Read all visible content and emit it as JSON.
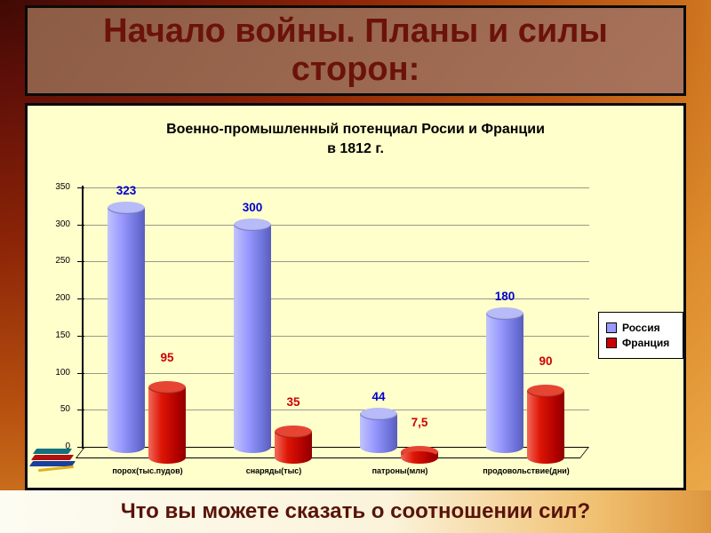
{
  "slide": {
    "title": "Начало войны. Планы и силы сторон:",
    "question": "Что вы можете сказать о соотношении сил?"
  },
  "chart": {
    "title_line1": "Военно-промышленный потенциал Росии и Франции",
    "title_line2": "в 1812 г."
  },
  "colors": {
    "chart_background": "#ffffcc",
    "russia_bar": "#9999ff",
    "france_bar": "#cc0000",
    "value_label_russia": "#0000cc",
    "value_label_france": "#cc0000"
  },
  "chart_data": {
    "type": "bar",
    "style": "3d-cylinder",
    "title": "Военно-промышленный потенциал Росии и Франции в 1812 г.",
    "categories": [
      "порох(тыс.пудов)",
      "снаряды(тыс)",
      "патроны(млн)",
      "продовольствие(дни)"
    ],
    "series": [
      {
        "key": "russia",
        "name": "Россия",
        "color": "#9999ff",
        "values": [
          323,
          300,
          44,
          180
        ],
        "labels": [
          "323",
          "300",
          "44",
          "180"
        ],
        "label_color": "#0000cc"
      },
      {
        "key": "france",
        "name": "Франция",
        "color": "#cc0000",
        "values": [
          95,
          35,
          7.5,
          90
        ],
        "labels": [
          "95",
          "35",
          "7,5",
          "90"
        ],
        "label_color": "#cc0000"
      }
    ],
    "ylim": [
      0,
      350
    ],
    "ytick_step": 50,
    "yticks": [
      0,
      50,
      100,
      150,
      200,
      250,
      300,
      350
    ],
    "grid": true,
    "legend_position": "right"
  }
}
